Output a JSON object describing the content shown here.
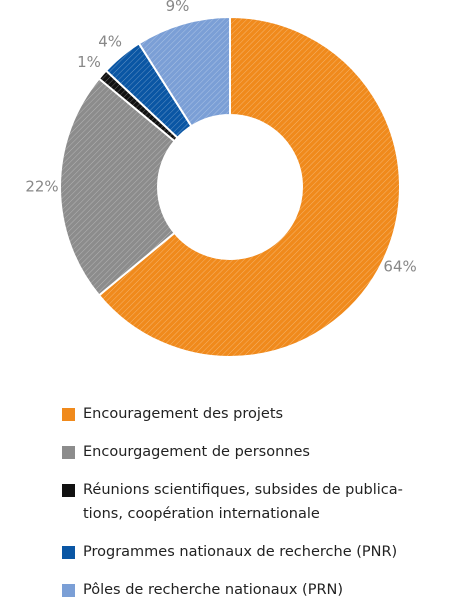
{
  "chart_data": {
    "type": "donut",
    "series": [
      {
        "name": "Encouragement des projets",
        "color": "#f08a1c",
        "values": [
          64
        ]
      },
      {
        "name": "Encourgagement de personnes",
        "color": "#8c8c8c",
        "values": [
          22
        ]
      },
      {
        "name": "Réunions scientifiques, subsides de publica-\ntions, coopération internationale",
        "color": "#111111",
        "values": [
          1
        ]
      },
      {
        "name": "Programmes nationaux de recherche (PNR)",
        "color": "#0a56a4",
        "values": [
          4
        ]
      },
      {
        "name": "Pôles de recherche nationaux (PRN)",
        "color": "#7b9fd6",
        "values": [
          9
        ]
      }
    ],
    "value_labels": [
      "64%",
      "22%",
      "1%",
      "4%",
      "9%"
    ]
  }
}
